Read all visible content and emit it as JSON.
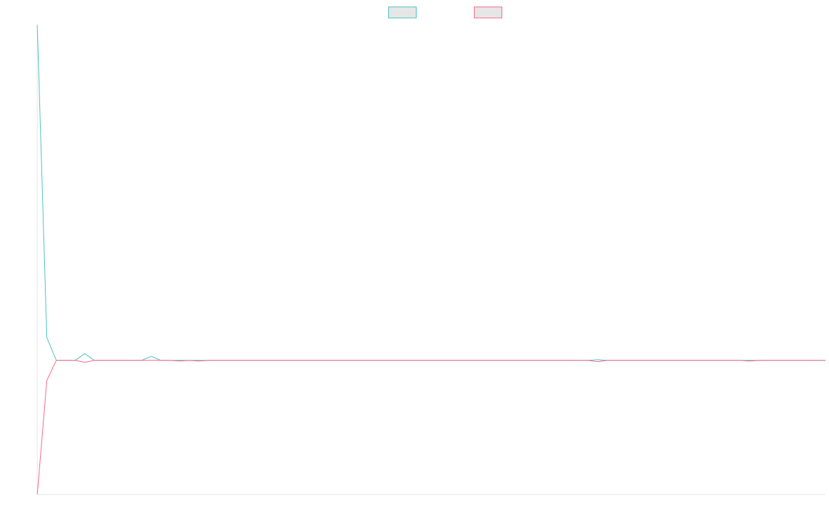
{
  "chart_data": {
    "type": "line",
    "title": "",
    "xlabel": "",
    "ylabel": "",
    "grid": false,
    "legend_position": "top-center",
    "x": [
      0,
      1,
      2,
      3,
      4,
      5,
      6,
      7,
      8,
      9,
      10,
      11,
      12,
      13,
      14,
      15,
      16,
      17,
      18,
      19,
      20,
      21,
      22,
      23,
      24,
      25,
      26,
      27,
      28,
      29,
      30,
      31,
      32,
      33,
      34,
      35,
      36,
      37,
      38,
      39,
      40,
      41,
      42,
      43,
      44,
      45,
      46,
      47,
      48,
      49,
      50,
      51,
      52,
      53,
      54,
      55,
      56,
      57,
      58,
      59,
      60,
      61,
      62,
      63,
      64,
      65,
      66,
      67,
      68,
      69,
      70,
      71,
      72,
      73,
      74,
      75,
      76,
      77,
      78,
      79,
      80,
      81,
      82,
      83
    ],
    "xlim": [
      0,
      83
    ],
    "ylim": [
      -1,
      2.5
    ],
    "series": [
      {
        "name": "",
        "color": "#4bc0c0",
        "values": [
          2.5,
          0.17,
          0,
          0,
          0,
          0.05,
          0,
          0,
          0,
          0,
          0,
          0,
          0.03,
          0,
          0,
          0,
          0,
          0,
          0,
          0,
          0,
          0,
          0,
          0,
          0,
          0,
          0,
          0,
          0,
          0,
          0,
          0,
          0,
          0,
          0,
          0,
          0,
          0,
          0,
          0,
          0,
          0,
          0,
          0,
          0,
          0,
          0,
          0,
          0,
          0,
          0,
          0,
          0,
          0,
          0,
          0,
          0,
          0,
          0,
          0.005,
          0,
          0,
          0,
          0,
          0,
          0,
          0,
          0,
          0,
          0,
          0,
          0,
          0,
          0,
          0,
          0,
          0,
          0,
          0,
          0,
          0,
          0,
          0,
          0
        ]
      },
      {
        "name": "",
        "color": "#ff6384",
        "values": [
          -1,
          -0.15,
          0,
          0,
          0,
          -0.015,
          0,
          0,
          0,
          0,
          0,
          0,
          0,
          0,
          0,
          -0.005,
          0,
          -0.005,
          0,
          0,
          0,
          0,
          0,
          0,
          0,
          0,
          0,
          0,
          0,
          0,
          0,
          0,
          0,
          0,
          0,
          0,
          0,
          0,
          0,
          0,
          0,
          0,
          0,
          0,
          0,
          0,
          0,
          0,
          0,
          0,
          0,
          0,
          0,
          0,
          0,
          0,
          0,
          0,
          0,
          -0.01,
          0,
          0,
          0,
          0,
          0,
          0,
          0,
          0,
          0,
          0,
          0,
          0,
          0,
          0,
          0,
          -0.005,
          0,
          0,
          0,
          0,
          0,
          0,
          0,
          0
        ]
      }
    ]
  }
}
